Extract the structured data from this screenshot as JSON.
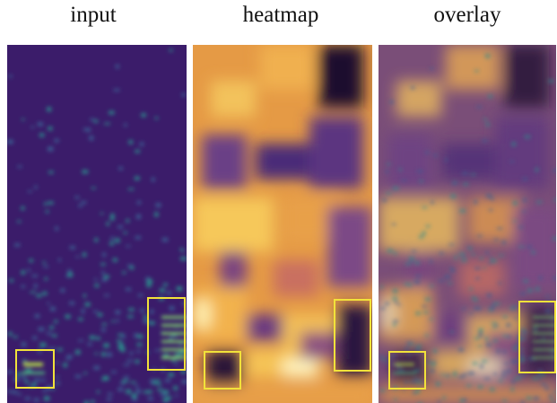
{
  "panels": [
    {
      "title": "input"
    },
    {
      "title": "heatmap"
    },
    {
      "title": "overlay"
    }
  ]
}
